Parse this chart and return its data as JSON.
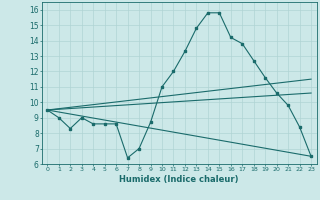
{
  "xlabel": "Humidex (Indice chaleur)",
  "bg_color": "#cce8e8",
  "grid_color": "#b0d4d4",
  "line_color": "#1a6b6b",
  "xlim": [
    -0.5,
    23.5
  ],
  "ylim": [
    6,
    16.5
  ],
  "yticks": [
    6,
    7,
    8,
    9,
    10,
    11,
    12,
    13,
    14,
    15,
    16
  ],
  "xticks": [
    0,
    1,
    2,
    3,
    4,
    5,
    6,
    7,
    8,
    9,
    10,
    11,
    12,
    13,
    14,
    15,
    16,
    17,
    18,
    19,
    20,
    21,
    22,
    23
  ],
  "series1_x": [
    0,
    1,
    2,
    3,
    4,
    5,
    6,
    7,
    8,
    9,
    10,
    11,
    12,
    13,
    14,
    15,
    16,
    17,
    18,
    19,
    20,
    21,
    22,
    23
  ],
  "series1_y": [
    9.5,
    9.0,
    8.3,
    9.0,
    8.6,
    8.6,
    8.6,
    6.4,
    7.0,
    8.7,
    11.0,
    12.0,
    13.3,
    14.8,
    15.8,
    15.8,
    14.2,
    13.8,
    12.7,
    11.6,
    10.6,
    9.8,
    8.4,
    6.5
  ],
  "series2_x": [
    0,
    23
  ],
  "series2_y": [
    9.5,
    11.5
  ],
  "series3_x": [
    0,
    23
  ],
  "series3_y": [
    9.5,
    10.6
  ],
  "series4_x": [
    0,
    23
  ],
  "series4_y": [
    9.5,
    6.5
  ]
}
